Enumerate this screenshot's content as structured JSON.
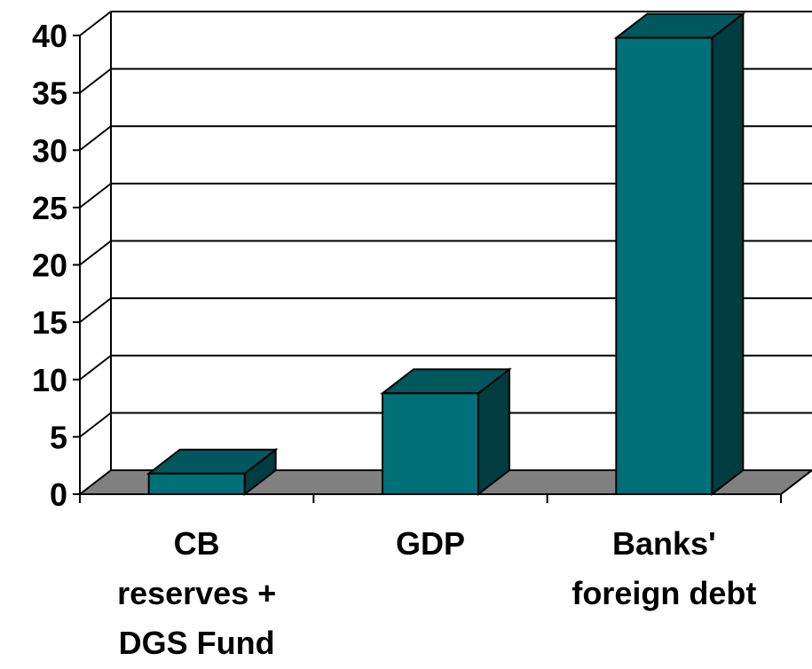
{
  "chart_data": {
    "type": "bar",
    "categories": [
      [
        "CB",
        "reserves +",
        "DGS Fund"
      ],
      [
        "GDP"
      ],
      [
        "Banks'",
        "foreign debt"
      ]
    ],
    "values": [
      1.8,
      8.8,
      39.8
    ],
    "yticks": [
      "0",
      "5",
      "10",
      "15",
      "20",
      "25",
      "30",
      "35",
      "40"
    ],
    "ylim": [
      0,
      40
    ],
    "grid": true,
    "three_d": true,
    "colors": {
      "bar_front": "#007078",
      "bar_side": "#003c40",
      "bar_top": "#00585e",
      "floor": "#808080",
      "grid": "#000000"
    }
  }
}
